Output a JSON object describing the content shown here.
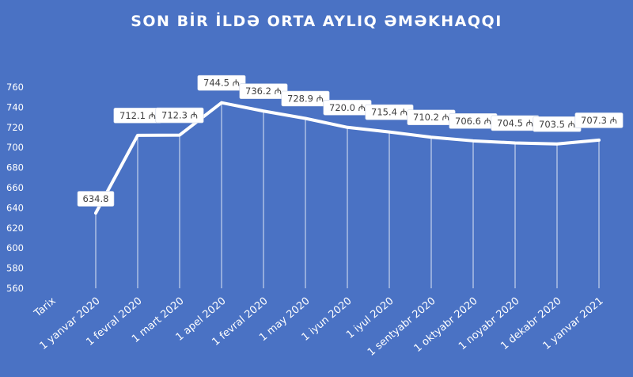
{
  "chart_data": {
    "type": "line",
    "title": "SON BİR İLDƏ ORTA AYLIQ ƏMƏKHAQQI",
    "x_axis_first_label": "Tarix",
    "categories": [
      "1 yanvar 2020",
      "1 fevral 2020",
      "1 mart 2020",
      "1 apel 2020",
      "1 fevral 2020",
      "1 may 2020",
      "1 iyun 2020",
      "1 iyul 2020",
      "1 sentyabr 2020",
      "1 oktyabr 2020",
      "1 noyabr 2020",
      "1 dekabr 2020",
      "1 yanvar 2021"
    ],
    "values": [
      634.8,
      712.1,
      712.3,
      744.5,
      736.2,
      728.9,
      720.0,
      715.4,
      710.2,
      706.6,
      704.5,
      703.5,
      707.3
    ],
    "data_labels": [
      "634.8",
      "712.1 ₼",
      "712.3 ₼",
      "744.5 ₼",
      "736.2 ₼",
      "728.9 ₼",
      "720.0 ₼",
      "715.4 ₼",
      "710.2 ₼",
      "706.6 ₼",
      "704.5 ₼",
      "703.5 ₼",
      "707.3 ₼"
    ],
    "ylim": [
      560,
      760
    ],
    "yticks": [
      560,
      580,
      600,
      620,
      640,
      660,
      680,
      700,
      720,
      740,
      760
    ],
    "grid": false,
    "legend": "none",
    "colors": {
      "background": "#4a72c4",
      "line": "#ffffff",
      "label_bg": "#ffffff",
      "label_text": "#404040"
    }
  }
}
